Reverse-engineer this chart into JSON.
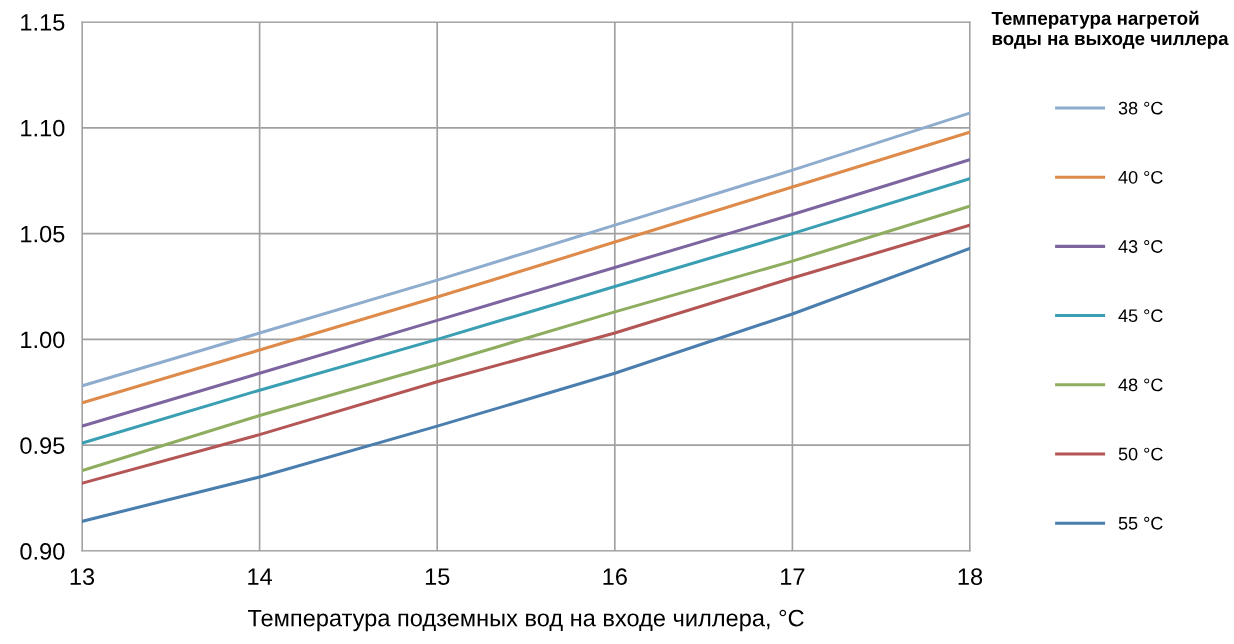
{
  "chart_data": {
    "type": "line",
    "xlabel": "Температура подземных вод на входе чиллера, °C",
    "legend_title": "Температура нагретой\nводы на выходе чиллера",
    "x": [
      13,
      14,
      15,
      16,
      17,
      18
    ],
    "series": [
      {
        "name": "38 °C",
        "color": "#8eaccd",
        "values": [
          0.978,
          1.003,
          1.028,
          1.054,
          1.08,
          1.107
        ]
      },
      {
        "name": "40 °C",
        "color": "#dd8a4b",
        "values": [
          0.97,
          0.995,
          1.02,
          1.046,
          1.072,
          1.098
        ]
      },
      {
        "name": "43 °C",
        "color": "#7d65a0",
        "values": [
          0.959,
          0.984,
          1.009,
          1.034,
          1.059,
          1.085
        ]
      },
      {
        "name": "45 °C",
        "color": "#3a9fb3",
        "values": [
          0.951,
          0.976,
          1.0,
          1.025,
          1.05,
          1.076
        ]
      },
      {
        "name": "48 °C",
        "color": "#8fad5e",
        "values": [
          0.938,
          0.964,
          0.988,
          1.013,
          1.037,
          1.063
        ]
      },
      {
        "name": "50 °C",
        "color": "#b35655",
        "values": [
          0.932,
          0.955,
          0.98,
          1.003,
          1.029,
          1.054
        ]
      },
      {
        "name": "55 °C",
        "color": "#4a7eae",
        "values": [
          0.914,
          0.935,
          0.959,
          0.984,
          1.012,
          1.043
        ]
      }
    ],
    "xlim": [
      13,
      18
    ],
    "xticks": [
      13,
      14,
      15,
      16,
      17,
      18
    ],
    "ylim": [
      0.9,
      1.15
    ],
    "yticks": [
      {
        "value": 0.9,
        "label": "0.90"
      },
      {
        "value": 0.95,
        "label": "0.95"
      },
      {
        "value": 1.0,
        "label": "1.00"
      },
      {
        "value": 1.05,
        "label": "1.05"
      },
      {
        "value": 1.1,
        "label": "1.10"
      },
      {
        "value": 1.15,
        "label": "1.15"
      }
    ],
    "grid": true,
    "legend": "right",
    "marker": "none",
    "line_style": "solid"
  }
}
